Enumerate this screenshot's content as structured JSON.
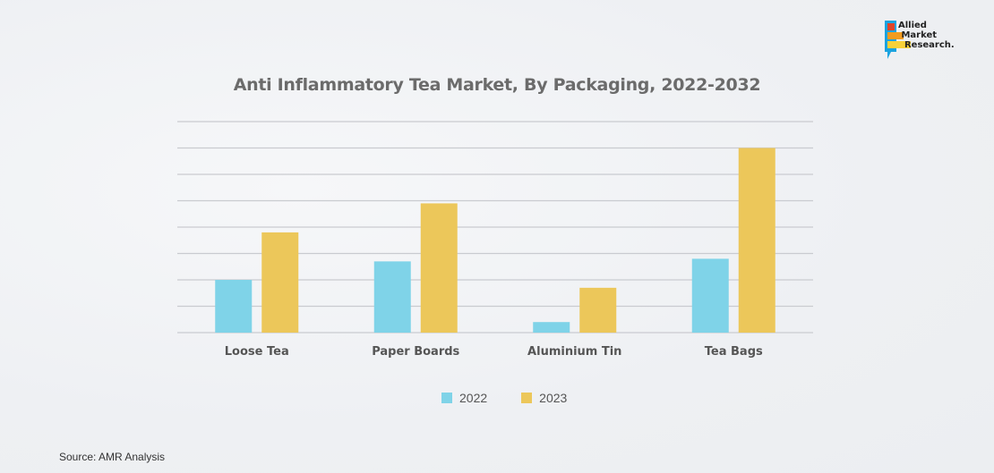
{
  "logo": {
    "text": "Allied Market Research"
  },
  "source": "Source:  AMR Analysis",
  "chart_data": {
    "type": "bar",
    "title": "Anti Inflammatory Tea Market, By Packaging, 2022-2032",
    "categories": [
      "Loose Tea",
      "Paper Boards",
      "Aluminium Tin",
      "Tea Bags"
    ],
    "series": [
      {
        "name": "2022",
        "color": "#7fd3e8",
        "values": [
          2.0,
          2.7,
          0.4,
          2.8
        ]
      },
      {
        "name": "2023",
        "color": "#ecc75a",
        "values": [
          3.8,
          4.9,
          1.7,
          7.0
        ]
      }
    ],
    "xlabel": "",
    "ylabel": "",
    "ylim": [
      0,
      8
    ],
    "grid": true,
    "legend": "bottom-center"
  }
}
